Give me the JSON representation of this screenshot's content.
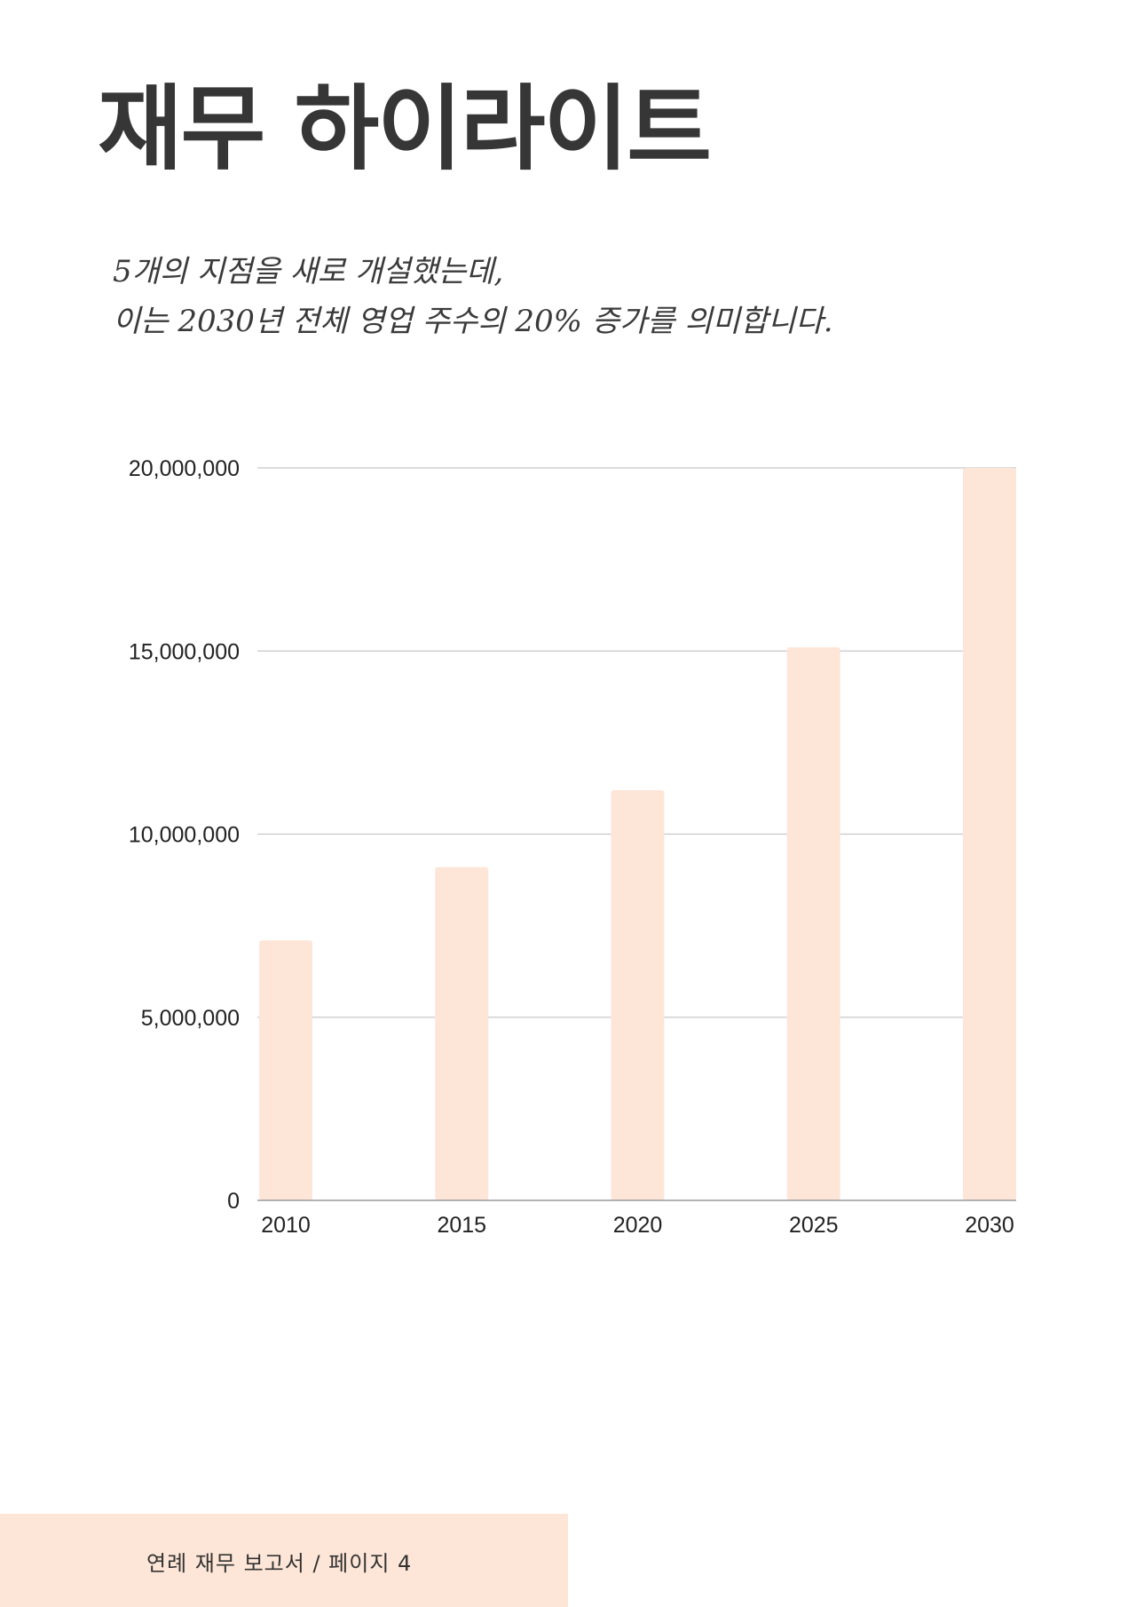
{
  "title": "재무 하이라이트",
  "subtitle": {
    "line1": "5개의 지점을 새로 개설했는데,",
    "line2": "이는 2030년 전체 영업 주수의 20% 증가를 의미합니다."
  },
  "footer": {
    "text": "연례 재무 보고서 / 페이지 4",
    "color": "#fde6d7"
  },
  "colors": {
    "bar": "#fde6d7",
    "grid": "#c8c8c8",
    "axis": "#9a9a9a",
    "title": "#363636",
    "label": "#222222"
  },
  "chart_data": {
    "type": "bar",
    "categories": [
      "2010",
      "2015",
      "2020",
      "2025",
      "2030"
    ],
    "values": [
      7100000,
      9100000,
      11200000,
      15100000,
      20000000
    ],
    "ylim": [
      0,
      20000000
    ],
    "yticks": [
      0,
      5000000,
      10000000,
      15000000,
      20000000
    ],
    "ytick_labels": [
      "0",
      "5,000,000",
      "10,000,000",
      "15,000,000",
      "20,000,000"
    ],
    "grid": true,
    "legend": "none",
    "xlabel": "",
    "ylabel": ""
  }
}
